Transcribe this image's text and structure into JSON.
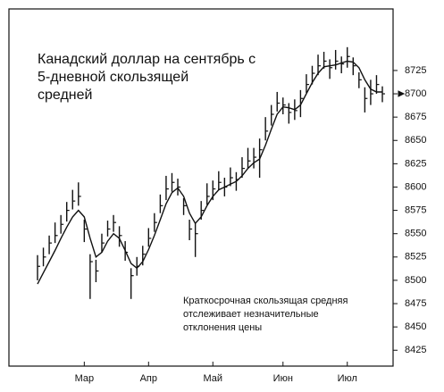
{
  "chart_data": {
    "type": "hlc",
    "title": [
      "Канадский доллар на сентябрь с",
      "5-дневной скользящей",
      "средней"
    ],
    "annotation": [
      "Краткосрочная скользящая средняя",
      "отслеживает незначительные",
      "отклонения цены"
    ],
    "categories": [
      null,
      null,
      null,
      null,
      null,
      null,
      null,
      null,
      "Мар",
      null,
      null,
      null,
      null,
      null,
      null,
      null,
      null,
      null,
      null,
      "Апр",
      null,
      null,
      null,
      null,
      null,
      null,
      null,
      null,
      null,
      null,
      "Май",
      null,
      null,
      null,
      null,
      null,
      null,
      null,
      null,
      null,
      null,
      null,
      "Июн",
      null,
      null,
      null,
      null,
      null,
      null,
      null,
      null,
      null,
      null,
      "Июл",
      null,
      null,
      null,
      null,
      null,
      null
    ],
    "high": [
      8527,
      8535,
      8548,
      8562,
      8570,
      8584,
      8597,
      8605,
      8565,
      8528,
      8522,
      8550,
      8564,
      8570,
      8558,
      8542,
      8513,
      8525,
      8537,
      8556,
      8572,
      8592,
      8612,
      8615,
      8609,
      8588,
      8565,
      8562,
      8585,
      8604,
      8607,
      8617,
      8610,
      8621,
      8616,
      8632,
      8642,
      8642,
      8652,
      8675,
      8688,
      8702,
      8696,
      8690,
      8694,
      8704,
      8721,
      8730,
      8742,
      8745,
      8737,
      8747,
      8740,
      8750,
      8739,
      8723,
      8707,
      8715,
      8720,
      8708
    ],
    "low": [
      8500,
      8515,
      8528,
      8540,
      8550,
      8563,
      8576,
      8580,
      8541,
      8480,
      8498,
      8530,
      8547,
      8552,
      8536,
      8521,
      8480,
      8505,
      8516,
      8536,
      8552,
      8572,
      8586,
      8595,
      8591,
      8570,
      8543,
      8525,
      8565,
      8581,
      8586,
      8597,
      8590,
      8601,
      8596,
      8610,
      8620,
      8620,
      8610,
      8650,
      8666,
      8681,
      8678,
      8668,
      8672,
      8675,
      8701,
      8710,
      8720,
      8727,
      8716,
      8726,
      8722,
      8728,
      8720,
      8706,
      8680,
      8688,
      8700,
      8691
    ],
    "close": [
      8515,
      8525,
      8540,
      8548,
      8560,
      8575,
      8585,
      8590,
      8555,
      8520,
      8510,
      8540,
      8555,
      8562,
      8548,
      8530,
      8505,
      8515,
      8528,
      8545,
      8562,
      8580,
      8598,
      8605,
      8600,
      8580,
      8555,
      8550,
      8575,
      8590,
      8598,
      8605,
      8600,
      8610,
      8608,
      8620,
      8628,
      8632,
      8640,
      8660,
      8678,
      8690,
      8688,
      8680,
      8682,
      8695,
      8710,
      8722,
      8730,
      8735,
      8728,
      8735,
      8732,
      8740,
      8730,
      8715,
      8695,
      8700,
      8710,
      8700
    ],
    "moving_average": [
      8496,
      8508,
      8520,
      8532,
      8545,
      8557,
      8568,
      8575,
      8568,
      8545,
      8525,
      8530,
      8542,
      8550,
      8545,
      8532,
      8518,
      8513,
      8520,
      8533,
      8548,
      8565,
      8582,
      8594,
      8599,
      8590,
      8572,
      8561,
      8568,
      8580,
      8590,
      8597,
      8600,
      8603,
      8606,
      8612,
      8620,
      8626,
      8630,
      8645,
      8662,
      8678,
      8686,
      8685,
      8683,
      8688,
      8700,
      8712,
      8722,
      8729,
      8730,
      8731,
      8733,
      8735,
      8734,
      8728,
      8715,
      8705,
      8702,
      8702
    ],
    "color": "#111111",
    "ylim": [
      8408,
      8791
    ],
    "yticks": [
      8425,
      8450,
      8475,
      8500,
      8525,
      8550,
      8575,
      8600,
      8625,
      8650,
      8675,
      8700,
      8725
    ]
  }
}
